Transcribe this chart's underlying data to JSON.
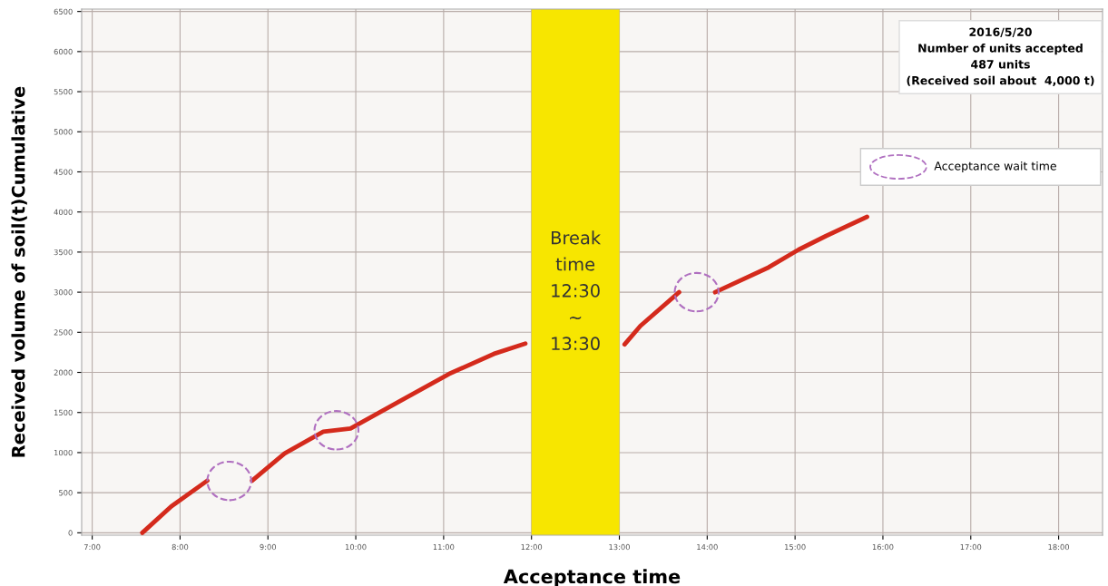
{
  "chart_data": {
    "type": "line",
    "xlabel": "Acceptance time",
    "ylabel": "Received volume of soil(t)Cumulative",
    "x": [
      7.57,
      7.9,
      8.31,
      null,
      8.82,
      9.19,
      9.63,
      9.94,
      10.55,
      11.06,
      11.57,
      11.93,
      null,
      13.06,
      13.24,
      13.68,
      null,
      14.09,
      14.7,
      15.04,
      15.35,
      15.82
    ],
    "series": [
      {
        "color": "#d42a1c",
        "values": [
          0,
          330,
          650,
          null,
          650,
          990,
          1260,
          1300,
          1670,
          1980,
          2230,
          2360,
          null,
          2350,
          2580,
          3000,
          null,
          3000,
          3310,
          3530,
          3700,
          3940
        ]
      }
    ],
    "xlim": [
      6.88,
      18.5
    ],
    "xticks": [
      {
        "value": 7,
        "label": "7:00"
      },
      {
        "value": 8,
        "label": "8:00"
      },
      {
        "value": 9,
        "label": "9:00"
      },
      {
        "value": 10,
        "label": "10:00"
      },
      {
        "value": 11,
        "label": "11:00"
      },
      {
        "value": 12,
        "label": "12:00"
      },
      {
        "value": 13,
        "label": "13:00"
      },
      {
        "value": 14,
        "label": "14:00"
      },
      {
        "value": 15,
        "label": "15:00"
      },
      {
        "value": 16,
        "label": "16:00"
      },
      {
        "value": 17,
        "label": "17:00"
      },
      {
        "value": 18,
        "label": "18:00"
      }
    ],
    "ylim": [
      -30,
      6530
    ],
    "yticks": [
      0,
      500,
      1000,
      1500,
      2000,
      2500,
      3000,
      3500,
      4000,
      4500,
      5000,
      5500,
      6000,
      6500
    ],
    "grid": true,
    "marker": "none",
    "line_style": "solid",
    "bands": [
      {
        "axis": "x",
        "from": 12,
        "to": 13,
        "label": "Break\ntime\n12:30\n~\n13:30",
        "color": "#f7e600"
      }
    ],
    "annotations": [
      "2016/5/20\nNumber of units accepted\n487 units\n(Received soil about  4,000 t)",
      "Acceptance wait time"
    ]
  }
}
